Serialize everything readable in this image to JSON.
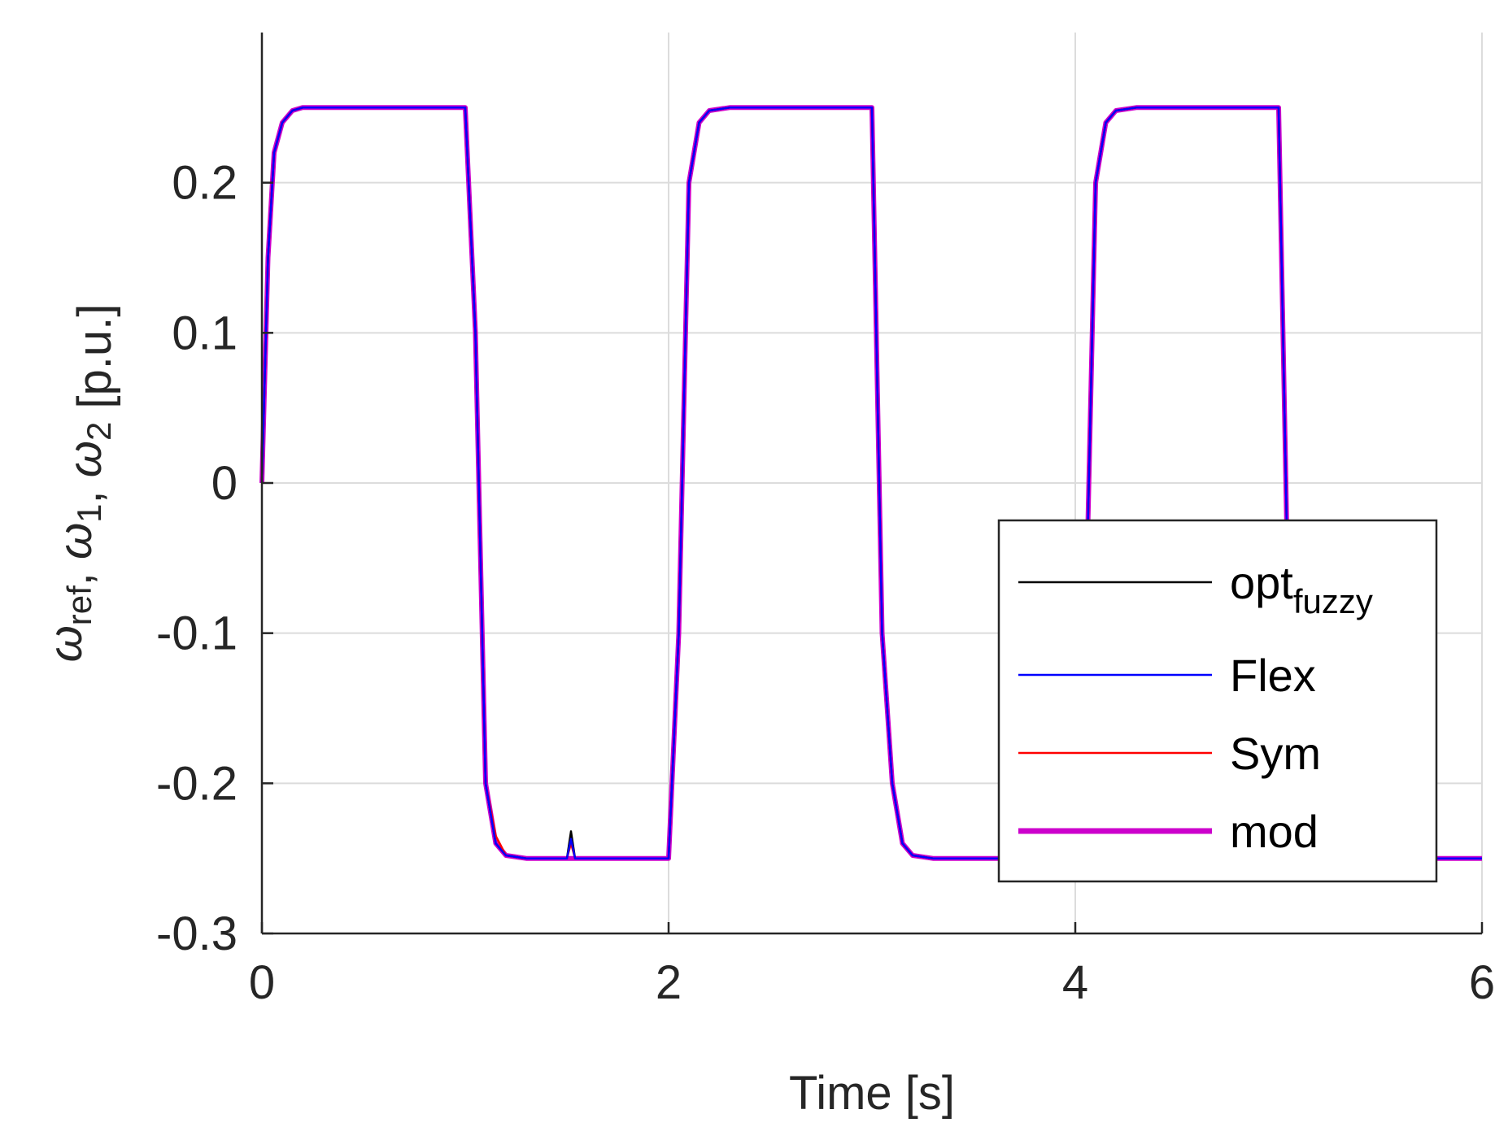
{
  "chart_data": {
    "type": "line",
    "title": "",
    "xlabel": "Time [s]",
    "ylabel": {
      "parts": [
        {
          "text": "ω",
          "italic": true
        },
        {
          "text": "ref",
          "sub": true
        },
        {
          "text": ", "
        },
        {
          "text": "ω",
          "italic": true
        },
        {
          "text": "1",
          "sub": true
        },
        {
          "text": ", "
        },
        {
          "text": "ω",
          "italic": true
        },
        {
          "text": "2",
          "sub": true
        },
        {
          "text": " [p.u.]"
        }
      ]
    },
    "xlim": [
      0,
      6
    ],
    "ylim": [
      -0.3,
      0.3
    ],
    "xticks": [
      0,
      2,
      4,
      6
    ],
    "xtick_labels": [
      "0",
      "2",
      "4",
      "6"
    ],
    "yticks": [
      -0.3,
      -0.2,
      -0.1,
      0,
      0.1,
      0.2
    ],
    "ytick_labels": [
      "-0.3",
      "-0.2",
      "-0.1",
      "0",
      "0.1",
      "0.2"
    ],
    "grid": true,
    "legend_position": "bottom-right",
    "series": [
      {
        "name": "opt",
        "name_sub": "fuzzy",
        "color": "#000000",
        "line_width": "thin",
        "x": [
          0,
          0.03,
          0.06,
          0.1,
          0.15,
          0.2,
          1.0,
          1.05,
          1.1,
          1.15,
          1.2,
          1.3,
          1.5,
          1.52,
          1.54,
          2.0,
          2.05,
          2.1,
          2.15,
          2.2,
          2.3,
          3.0,
          3.05,
          3.1,
          3.15,
          3.2,
          3.3,
          4.0,
          4.05,
          4.1,
          4.15,
          4.2,
          4.3,
          5.0,
          5.05,
          5.1,
          5.15,
          5.2,
          5.3,
          6.0
        ],
        "y": [
          0,
          0.15,
          0.22,
          0.24,
          0.248,
          0.25,
          0.25,
          0.1,
          -0.2,
          -0.24,
          -0.248,
          -0.25,
          -0.25,
          -0.232,
          -0.25,
          -0.25,
          -0.1,
          0.2,
          0.24,
          0.248,
          0.25,
          0.25,
          -0.1,
          -0.2,
          -0.24,
          -0.248,
          -0.25,
          -0.25,
          -0.1,
          0.2,
          0.24,
          0.248,
          0.25,
          0.25,
          -0.1,
          -0.2,
          -0.24,
          -0.248,
          -0.25,
          -0.25
        ]
      },
      {
        "name": "Flex",
        "color": "#0000ff",
        "line_width": "thin",
        "x": [
          0,
          0.03,
          0.06,
          0.1,
          0.15,
          0.2,
          1.0,
          1.05,
          1.1,
          1.15,
          1.2,
          1.3,
          1.5,
          1.52,
          1.54,
          2.0,
          2.05,
          2.1,
          2.15,
          2.2,
          2.3,
          3.0,
          3.05,
          3.1,
          3.15,
          3.2,
          3.3,
          4.0,
          4.05,
          4.1,
          4.15,
          4.2,
          4.3,
          5.0,
          5.05,
          5.1,
          5.15,
          5.2,
          5.3,
          6.0
        ],
        "y": [
          0,
          0.15,
          0.22,
          0.24,
          0.248,
          0.25,
          0.25,
          0.1,
          -0.2,
          -0.24,
          -0.248,
          -0.25,
          -0.25,
          -0.237,
          -0.25,
          -0.25,
          -0.1,
          0.2,
          0.24,
          0.248,
          0.25,
          0.25,
          -0.1,
          -0.2,
          -0.24,
          -0.248,
          -0.25,
          -0.25,
          -0.1,
          0.2,
          0.24,
          0.248,
          0.25,
          0.25,
          -0.1,
          -0.2,
          -0.24,
          -0.248,
          -0.25,
          -0.25
        ]
      },
      {
        "name": "Sym",
        "color": "#ff0000",
        "line_width": "thin",
        "x": [
          0,
          0.03,
          0.06,
          0.1,
          0.15,
          0.2,
          1.0,
          1.05,
          1.1,
          1.15,
          1.2,
          1.3,
          1.5,
          1.52,
          1.54,
          2.0,
          2.05,
          2.1,
          2.15,
          2.2,
          2.3,
          3.0,
          3.05,
          3.1,
          3.15,
          3.2,
          3.3,
          4.0,
          4.05,
          4.1,
          4.15,
          4.2,
          4.3,
          5.0,
          5.05,
          5.1,
          5.15,
          5.2,
          5.3,
          6.0
        ],
        "y": [
          0,
          0.15,
          0.22,
          0.24,
          0.248,
          0.25,
          0.25,
          0.1,
          -0.2,
          -0.235,
          -0.248,
          -0.25,
          -0.25,
          -0.24,
          -0.25,
          -0.25,
          -0.1,
          0.2,
          0.24,
          0.248,
          0.25,
          0.25,
          -0.1,
          -0.2,
          -0.24,
          -0.248,
          -0.25,
          -0.25,
          -0.1,
          0.2,
          0.24,
          0.248,
          0.25,
          0.25,
          -0.1,
          -0.2,
          -0.24,
          -0.248,
          -0.25,
          -0.25
        ]
      },
      {
        "name": "mod",
        "color": "#cc00cc",
        "line_width": "thick",
        "x": [
          0,
          0.03,
          0.06,
          0.1,
          0.15,
          0.2,
          1.0,
          1.05,
          1.1,
          1.15,
          1.2,
          1.3,
          2.0,
          2.05,
          2.1,
          2.15,
          2.2,
          2.3,
          3.0,
          3.05,
          3.1,
          3.15,
          3.2,
          3.3,
          4.0,
          4.05,
          4.1,
          4.15,
          4.2,
          4.3,
          5.0,
          5.05,
          5.1,
          5.15,
          5.2,
          5.3,
          6.0
        ],
        "y": [
          0,
          0.15,
          0.22,
          0.24,
          0.248,
          0.25,
          0.25,
          0.1,
          -0.2,
          -0.24,
          -0.248,
          -0.25,
          -0.25,
          -0.1,
          0.2,
          0.24,
          0.248,
          0.25,
          0.25,
          -0.1,
          -0.2,
          -0.24,
          -0.248,
          -0.25,
          -0.25,
          -0.1,
          0.2,
          0.24,
          0.248,
          0.25,
          0.25,
          -0.1,
          -0.2,
          -0.24,
          -0.248,
          -0.25,
          -0.25
        ]
      }
    ]
  }
}
